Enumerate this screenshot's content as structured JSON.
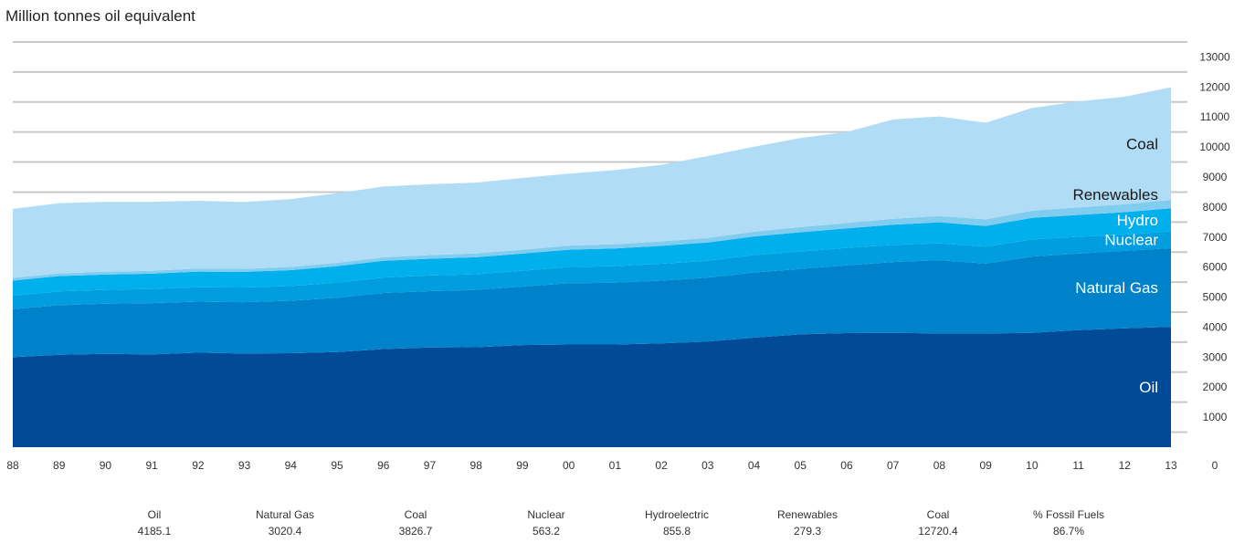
{
  "unit_label": "Million tonnes oil equivalent",
  "chart_data": {
    "type": "area",
    "stacked": true,
    "ylabel": "Million tonnes oil equivalent",
    "ylim": [
      0,
      13000
    ],
    "yticks": [
      0,
      1000,
      2000,
      3000,
      4000,
      5000,
      6000,
      7000,
      8000,
      9000,
      10000,
      11000,
      12000,
      13000
    ],
    "categories": [
      "88",
      "89",
      "90",
      "91",
      "92",
      "93",
      "94",
      "95",
      "96",
      "97",
      "98",
      "99",
      "00",
      "01",
      "02",
      "03",
      "04",
      "05",
      "06",
      "07",
      "08",
      "09",
      "10",
      "11",
      "12",
      "13"
    ],
    "series": [
      {
        "name": "Oil",
        "color": "#004a98",
        "values": [
          3000,
          3080,
          3110,
          3090,
          3150,
          3120,
          3130,
          3170,
          3270,
          3320,
          3330,
          3400,
          3420,
          3420,
          3460,
          3520,
          3650,
          3760,
          3800,
          3810,
          3790,
          3790,
          3810,
          3900,
          3960,
          4010
        ]
      },
      {
        "name": "Natural Gas",
        "color": "#0082ca",
        "values": [
          1600,
          1650,
          1670,
          1710,
          1700,
          1710,
          1750,
          1810,
          1870,
          1880,
          1910,
          1950,
          2040,
          2060,
          2090,
          2130,
          2170,
          2180,
          2260,
          2360,
          2440,
          2330,
          2540,
          2550,
          2580,
          2620
        ]
      },
      {
        "name": "Nuclear",
        "color": "#009ddf",
        "values": [
          450,
          460,
          460,
          470,
          480,
          490,
          490,
          500,
          510,
          520,
          520,
          530,
          540,
          550,
          560,
          560,
          580,
          580,
          580,
          570,
          560,
          560,
          570,
          560,
          540,
          560
        ]
      },
      {
        "name": "Hydro",
        "color": "#00b0ec",
        "values": [
          500,
          510,
          510,
          510,
          520,
          520,
          530,
          550,
          560,
          560,
          570,
          570,
          580,
          590,
          600,
          610,
          620,
          640,
          650,
          670,
          700,
          690,
          720,
          730,
          750,
          770
        ]
      },
      {
        "name": "Renewables",
        "color": "#80cdf0",
        "values": [
          90,
          90,
          95,
          95,
          100,
          100,
          105,
          110,
          115,
          120,
          125,
          130,
          135,
          140,
          145,
          150,
          160,
          170,
          180,
          200,
          210,
          220,
          240,
          250,
          265,
          280
        ]
      },
      {
        "name": "Coal",
        "color": "#b0ddf5",
        "values": [
          2300,
          2340,
          2330,
          2300,
          2260,
          2230,
          2260,
          2320,
          2360,
          2360,
          2360,
          2390,
          2400,
          2470,
          2550,
          2730,
          2830,
          2970,
          3030,
          3310,
          3320,
          3220,
          3420,
          3530,
          3580,
          3750
        ]
      }
    ]
  },
  "summary": [
    {
      "label": "Oil",
      "value": "4185.1"
    },
    {
      "label": "Natural Gas",
      "value": "3020.4"
    },
    {
      "label": "Coal",
      "value": "3826.7"
    },
    {
      "label": "Nuclear",
      "value": "563.2"
    },
    {
      "label": "Hydroelectric",
      "value": "855.8"
    },
    {
      "label": "Renewables",
      "value": "279.3"
    },
    {
      "label": "Coal",
      "value": "12720.4"
    },
    {
      "label": "% Fossil Fuels",
      "value": "86.7%"
    }
  ]
}
